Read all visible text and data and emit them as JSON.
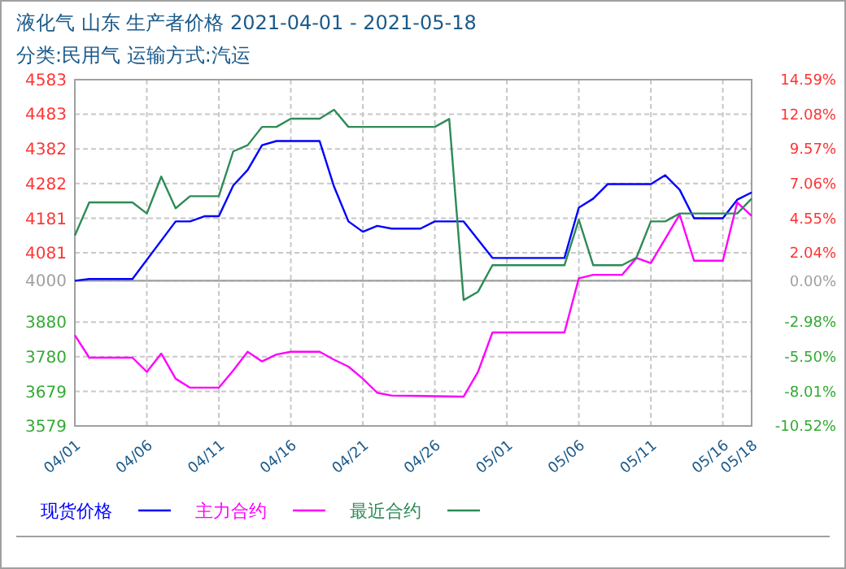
{
  "chart_data": {
    "type": "line",
    "title": "液化气 山东 生产者价格 2021-04-01 - 2021-05-18",
    "subtitle": "分类:民用气 运输方式:汽运",
    "xlim": [
      "2021-04-01",
      "2021-05-18"
    ],
    "xticks": [
      {
        "value": "2021-04-01",
        "label": "04/01"
      },
      {
        "value": "2021-04-06",
        "label": "04/06"
      },
      {
        "value": "2021-04-11",
        "label": "04/11"
      },
      {
        "value": "2021-04-16",
        "label": "04/16"
      },
      {
        "value": "2021-04-21",
        "label": "04/21"
      },
      {
        "value": "2021-04-26",
        "label": "04/26"
      },
      {
        "value": "2021-05-01",
        "label": "05/01"
      },
      {
        "value": "2021-05-06",
        "label": "05/06"
      },
      {
        "value": "2021-05-11",
        "label": "05/11"
      },
      {
        "value": "2021-05-16",
        "label": "05/16"
      },
      {
        "value": "2021-05-18",
        "label": "05/18"
      }
    ],
    "ylim": [
      3579,
      4583
    ],
    "yticks": [
      3579,
      3679,
      3780,
      3880,
      4000,
      4081,
      4181,
      4282,
      4382,
      4483,
      4583
    ],
    "y2lim": [
      -10.52,
      14.59
    ],
    "y2ticks": [
      {
        "value": -10.52,
        "label": "-10.52%"
      },
      {
        "value": -8.01,
        "label": "-8.01%"
      },
      {
        "value": -5.5,
        "label": "-5.50%"
      },
      {
        "value": -2.98,
        "label": "-2.98%"
      },
      {
        "value": 0,
        "label": "0.00%"
      },
      {
        "value": 2.04,
        "label": "2.04%"
      },
      {
        "value": 4.55,
        "label": "4.55%"
      },
      {
        "value": 7.06,
        "label": "7.06%"
      },
      {
        "value": 9.57,
        "label": "9.57%"
      },
      {
        "value": 12.08,
        "label": "12.08%"
      },
      {
        "value": 14.59,
        "label": "14.59%"
      }
    ],
    "ref_lines": [
      {
        "axis": "y",
        "value": 4000,
        "color": "#a0a0a0"
      }
    ],
    "grid": true,
    "legend": "bottom",
    "line_style": "solid",
    "marker": "none",
    "series": [
      {
        "name": "现货价格",
        "color": "#0000ff",
        "x": [
          "2021-04-01",
          "2021-04-02",
          "2021-04-05",
          "2021-04-08",
          "2021-04-09",
          "2021-04-10",
          "2021-04-11",
          "2021-04-12",
          "2021-04-13",
          "2021-04-14",
          "2021-04-15",
          "2021-04-18",
          "2021-04-19",
          "2021-04-20",
          "2021-04-21",
          "2021-04-22",
          "2021-04-23",
          "2021-04-25",
          "2021-04-26",
          "2021-04-28",
          "2021-04-30",
          "2021-05-05",
          "2021-05-06",
          "2021-05-07",
          "2021-05-08",
          "2021-05-11",
          "2021-05-12",
          "2021-05-13",
          "2021-05-14",
          "2021-05-16",
          "2021-05-17",
          "2021-05-18"
        ],
        "values": [
          4000,
          4005,
          4005,
          4172,
          4172,
          4187,
          4187,
          4276,
          4321,
          4393,
          4405,
          4405,
          4273,
          4172,
          4142,
          4159,
          4151,
          4151,
          4172,
          4172,
          4066,
          4066,
          4212,
          4238,
          4280,
          4280,
          4306,
          4264,
          4181,
          4181,
          4235,
          4256
        ]
      },
      {
        "name": "主力合约",
        "color": "#ff00ff",
        "x": [
          "2021-04-01",
          "2021-04-02",
          "2021-04-05",
          "2021-04-06",
          "2021-04-07",
          "2021-04-08",
          "2021-04-09",
          "2021-04-11",
          "2021-04-12",
          "2021-04-13",
          "2021-04-14",
          "2021-04-15",
          "2021-04-16",
          "2021-04-18",
          "2021-04-19",
          "2021-04-20",
          "2021-04-21",
          "2021-04-22",
          "2021-04-23",
          "2021-04-28",
          "2021-04-29",
          "2021-04-30",
          "2021-05-05",
          "2021-05-06",
          "2021-05-07",
          "2021-05-09",
          "2021-05-10",
          "2021-05-11",
          "2021-05-13",
          "2021-05-14",
          "2021-05-16",
          "2021-05-17",
          "2021-05-18"
        ],
        "values": [
          3842,
          3777,
          3777,
          3736,
          3789,
          3716,
          3690,
          3690,
          3740,
          3794,
          3766,
          3786,
          3794,
          3794,
          3771,
          3751,
          3716,
          3675,
          3667,
          3664,
          3736,
          3850,
          3850,
          4007,
          4017,
          4017,
          4066,
          4051,
          4192,
          4058,
          4058,
          4227,
          4188
        ]
      },
      {
        "name": "最近合约",
        "color": "#2e8b57",
        "x": [
          "2021-04-01",
          "2021-04-02",
          "2021-04-05",
          "2021-04-06",
          "2021-04-07",
          "2021-04-08",
          "2021-04-09",
          "2021-04-11",
          "2021-04-12",
          "2021-04-13",
          "2021-04-14",
          "2021-04-15",
          "2021-04-16",
          "2021-04-18",
          "2021-04-19",
          "2021-04-20",
          "2021-04-26",
          "2021-04-27",
          "2021-04-28",
          "2021-04-29",
          "2021-04-30",
          "2021-05-05",
          "2021-05-06",
          "2021-05-07",
          "2021-05-09",
          "2021-05-10",
          "2021-05-11",
          "2021-05-12",
          "2021-05-13",
          "2021-05-17",
          "2021-05-18"
        ],
        "values": [
          4131,
          4227,
          4227,
          4195,
          4302,
          4210,
          4245,
          4245,
          4375,
          4393,
          4446,
          4446,
          4470,
          4470,
          4496,
          4446,
          4446,
          4469,
          3944,
          3968,
          4045,
          4045,
          4177,
          4045,
          4045,
          4067,
          4172,
          4172,
          4195,
          4195,
          4238
        ]
      }
    ]
  }
}
